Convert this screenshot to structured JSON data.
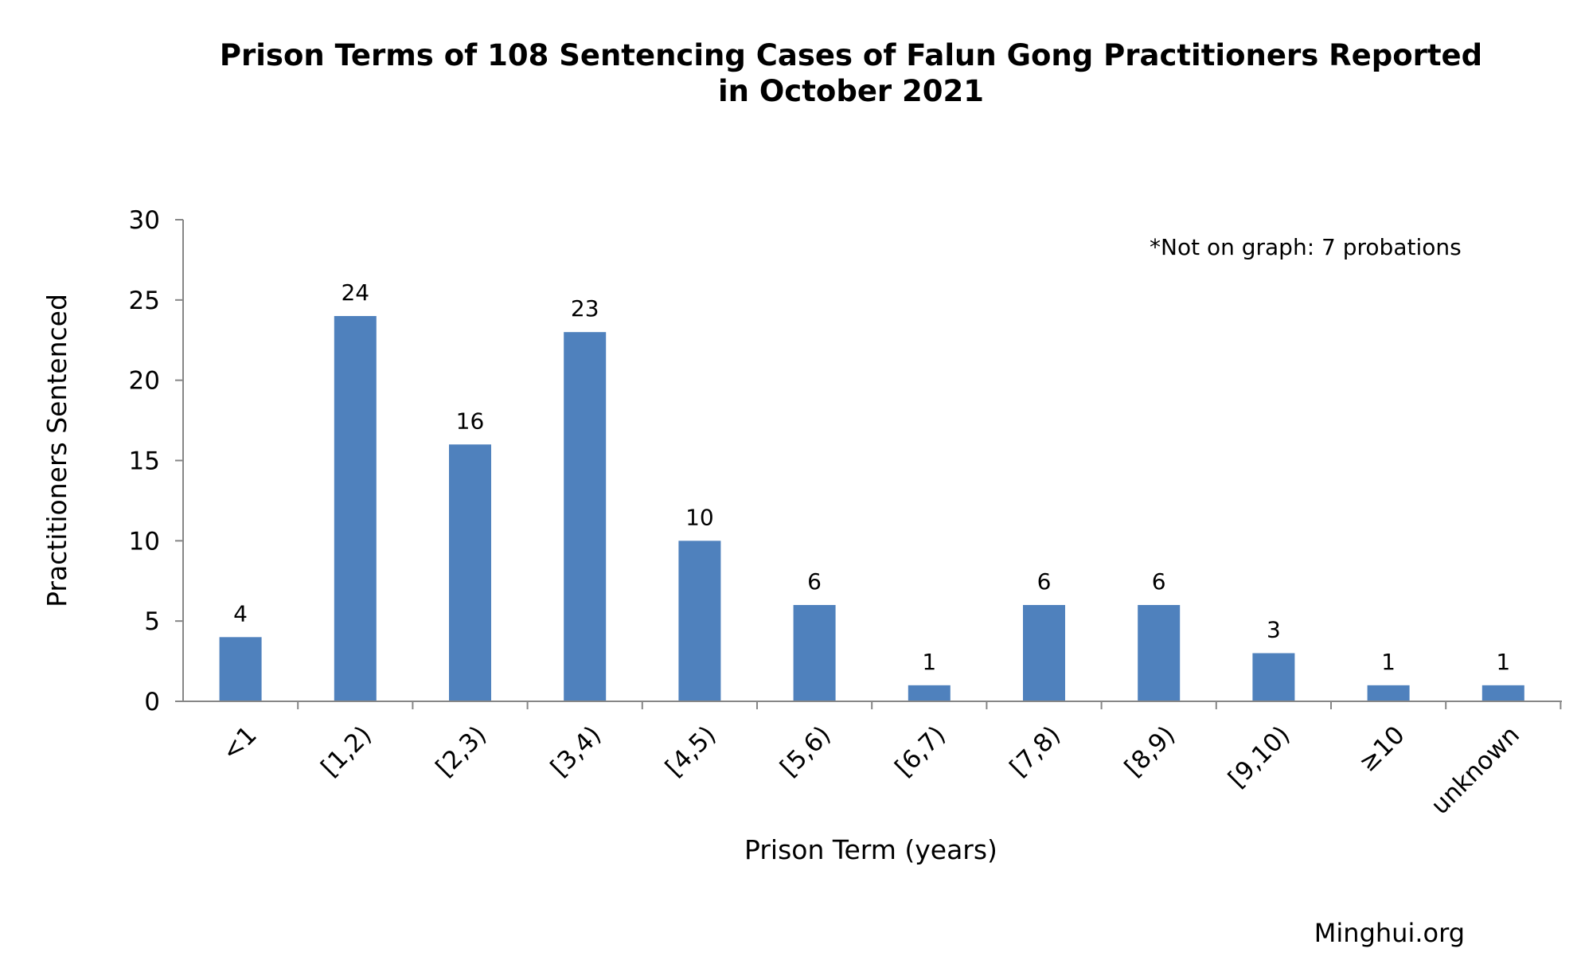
{
  "chart_data": {
    "type": "bar",
    "title_lines": [
      "Prison Terms of 108 Sentencing Cases of Falun Gong Practitioners Reported",
      "in October 2021"
    ],
    "xlabel": "Prison Term (years)",
    "ylabel": "Practitioners Sentenced",
    "categories": [
      "<1",
      "[1,2)",
      "[2,3)",
      "[3,4)",
      "[4,5)",
      "[5,6)",
      "[6,7)",
      "[7,8)",
      "[8,9)",
      "[9,10)",
      "≥10",
      "unknown"
    ],
    "values": [
      4,
      24,
      16,
      23,
      10,
      6,
      1,
      6,
      6,
      3,
      1,
      1
    ],
    "ylim": [
      0,
      30
    ],
    "yticks": [
      0,
      5,
      10,
      15,
      20,
      25,
      30
    ],
    "data_labels": true,
    "grid": false,
    "legend": "none",
    "bar_color": "#4F81BD",
    "axis_color": "#868686",
    "annotation": "*Not on graph: 7 probations",
    "source": "Minghui.org"
  }
}
